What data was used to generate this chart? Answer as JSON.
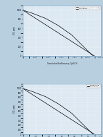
{
  "background_color": "#b8cfe0",
  "plot_bg_color": "#dce8f2",
  "border_color": "#6a9cc0",
  "chart1": {
    "xlabel": "Cumulative Gas Recovery, Gp/G, %",
    "ylabel": "P/Z, psia",
    "xlim": [
      0,
      120000
    ],
    "ylim": [
      0,
      1100
    ],
    "yticks": [
      0,
      200,
      400,
      600,
      800,
      1000
    ],
    "xticks": [
      20000,
      40000,
      60000,
      80000,
      100000,
      120000
    ],
    "legend": [
      "Straight-Line (HCPV Const)",
      "Pot Aquifer"
    ],
    "straight_line_x": [
      0,
      110000
    ],
    "straight_line_y": [
      1000,
      0
    ],
    "pot_aquifer_x": [
      0,
      15000,
      35000,
      55000,
      75000,
      95000,
      108000
    ],
    "pot_aquifer_y": [
      1000,
      930,
      820,
      660,
      460,
      180,
      0
    ]
  },
  "chart2": {
    "xlabel": "",
    "ylabel": "P/Z, psia",
    "xlim": [
      0,
      1.2
    ],
    "ylim": [
      0,
      1100
    ],
    "yticks": [
      0,
      100,
      200,
      300,
      400,
      500,
      600,
      700,
      800,
      900,
      1000
    ],
    "xticks": [
      0.2,
      0.4,
      0.6,
      0.8,
      1.0,
      1.2
    ],
    "legend": [
      "Straight-Line",
      "Pot Aquifer"
    ],
    "straight_line_x": [
      0,
      1.1
    ],
    "straight_line_y": [
      1000,
      0
    ],
    "pot_aquifer_x": [
      0,
      0.15,
      0.35,
      0.55,
      0.75,
      0.95,
      1.08
    ],
    "pot_aquifer_y": [
      1000,
      930,
      820,
      660,
      460,
      180,
      0
    ]
  }
}
